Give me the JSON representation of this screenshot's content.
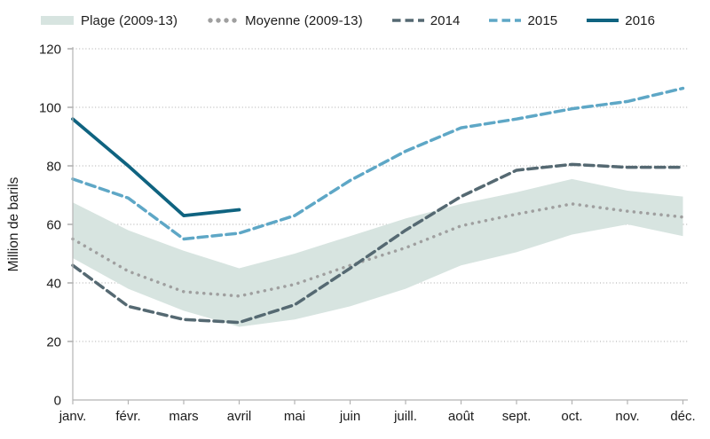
{
  "legend": {
    "items": [
      {
        "label": "Plage (2009-13)",
        "style": "band",
        "color": "#d7e4e0"
      },
      {
        "label": "Moyenne (2009-13)",
        "style": "dotted",
        "color": "#9f9f9f"
      },
      {
        "label": "2014",
        "style": "dashed",
        "color": "#556972"
      },
      {
        "label": "2015",
        "style": "dashed",
        "color": "#5ea7c6"
      },
      {
        "label": "2016",
        "style": "solid",
        "color": "#0f6380"
      }
    ]
  },
  "chart_data": {
    "type": "line",
    "title": "",
    "ylabel": "Million de barils",
    "xlabel": "",
    "categories": [
      "janv.",
      "févr.",
      "mars",
      "avril",
      "mai",
      "juin",
      "juill.",
      "août",
      "sept.",
      "oct.",
      "nov.",
      "déc."
    ],
    "ylim": [
      0,
      120
    ],
    "ytick_step": 20,
    "grid": "horizontal-dotted",
    "legend_position": "top",
    "series": [
      {
        "name": "Plage (2009-13)",
        "style": "band",
        "color": "#d7e4e0",
        "upper": [
          67.5,
          58,
          51,
          45,
          50,
          56,
          62,
          67,
          71,
          75.5,
          71.5,
          69.5
        ],
        "lower": [
          48.5,
          38,
          30.5,
          25,
          27.5,
          32,
          38,
          46,
          50.5,
          56.5,
          60,
          56
        ]
      },
      {
        "name": "Moyenne (2009-13)",
        "style": "dotted",
        "color": "#9f9f9f",
        "values": [
          55,
          44,
          37,
          35.5,
          39.5,
          46,
          52,
          59.5,
          63.5,
          67,
          64.5,
          62.5
        ]
      },
      {
        "name": "2014",
        "style": "dashed",
        "color": "#556972",
        "values": [
          46,
          32,
          27.5,
          26.5,
          32.5,
          45,
          58,
          69.5,
          78.5,
          80.5,
          79.5,
          79.5
        ]
      },
      {
        "name": "2015",
        "style": "dashed",
        "color": "#5ea7c6",
        "values": [
          75.5,
          69,
          55,
          57,
          63,
          75,
          85,
          93,
          96,
          99.5,
          102,
          106.5
        ]
      },
      {
        "name": "2016",
        "style": "solid",
        "color": "#0f6380",
        "values": [
          96,
          80,
          63,
          65
        ]
      }
    ],
    "axis_color": "#b3b3b3",
    "gridline_color": "#c6c6c6",
    "text_color": "#1c1c1c"
  }
}
